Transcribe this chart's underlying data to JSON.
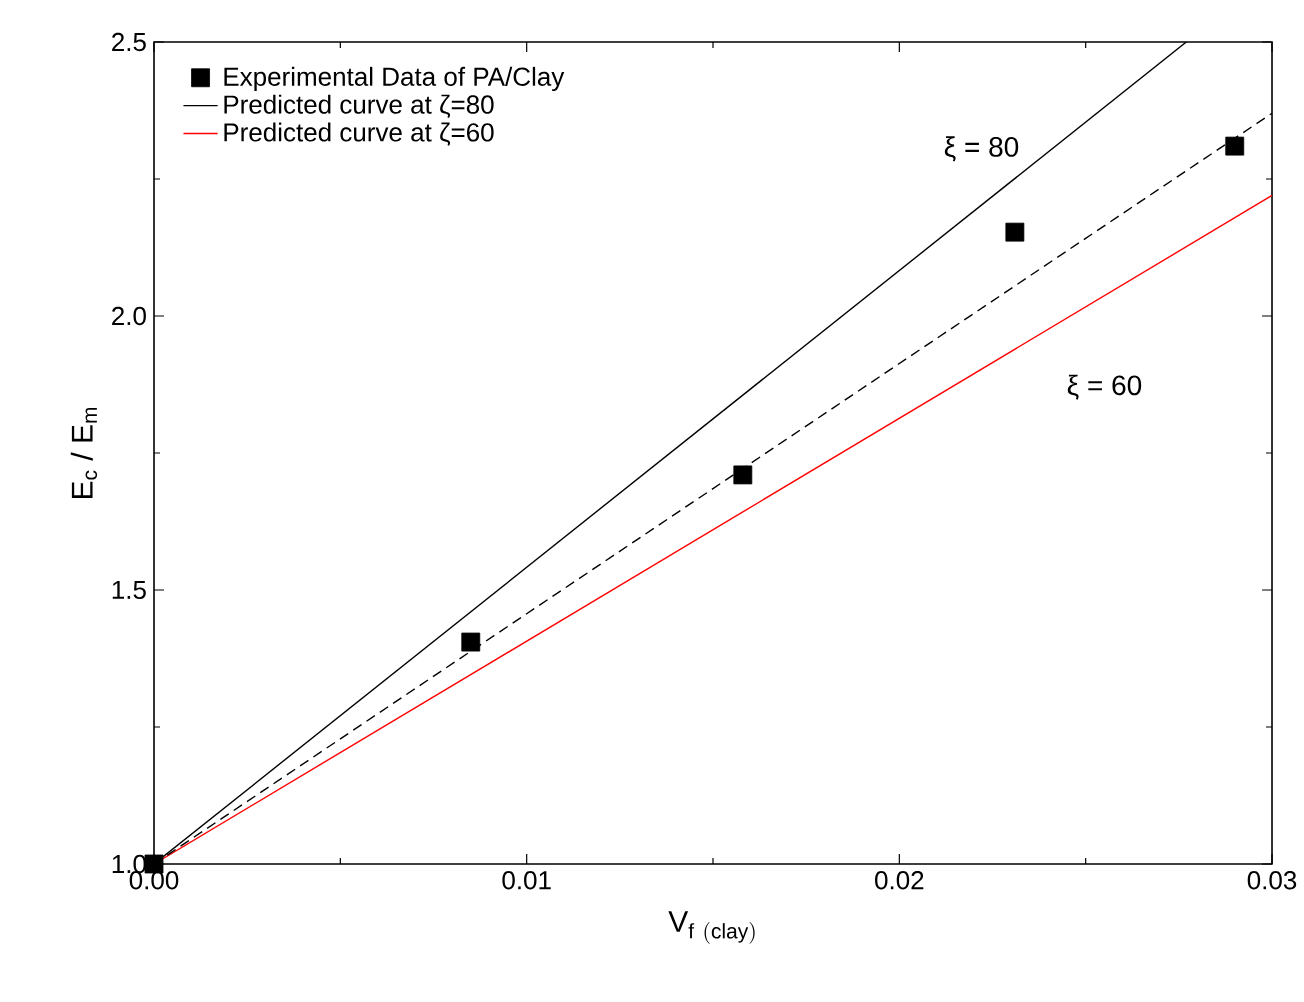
{
  "chart_data": {
    "type": "line",
    "xlabel": "\\mathrm{V}_{\\mathrm{f\\ (clay)}}",
    "ylabel": "E$_{c}$ / E$_{m}$",
    "xlim": [
      0,
      0.03
    ],
    "ylim": [
      1.0,
      2.5
    ],
    "xticks": [
      {
        "value": 0,
        "label": "0.00"
      },
      0.01,
      0.02,
      0.03
    ],
    "yticks": [
      {
        "value": 1,
        "label": "1.0"
      },
      1.5,
      {
        "value": 2,
        "label": "2.0"
      },
      2.5
    ],
    "legend": "top left",
    "grid": false,
    "series": [
      {
        "name": "Experimental Data of PA/Clay",
        "type": "scatter",
        "marker": "square",
        "color": "#000000",
        "x": [
          0,
          0.0085,
          0.0158,
          0.0231,
          0.029
        ],
        "values": [
          1.0,
          1.405,
          1.71,
          2.153,
          2.31
        ]
      },
      {
        "name": "Predicted curve at ζ=80",
        "type": "line",
        "line_style": "solid",
        "color": "#000000",
        "x": [
          0,
          0.0277
        ],
        "values": [
          1.0,
          2.5
        ]
      },
      {
        "name": "Predicted curve at ζ=60",
        "type": "line",
        "line_style": "solid",
        "color": "#ff0000",
        "x": [
          0,
          0.03
        ],
        "values": [
          1.0,
          2.22
        ]
      },
      {
        "line_style": "dashed",
        "color": "#000000",
        "x": [
          0,
          0.03
        ],
        "values": [
          1.0,
          2.37
        ]
      }
    ],
    "annotations": [
      "ξ = 80",
      "ξ = 60"
    ]
  }
}
